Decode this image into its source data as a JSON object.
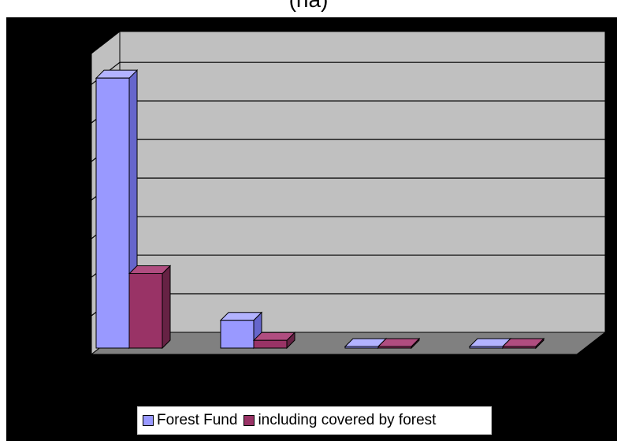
{
  "header": {
    "title_fragment": "(ha)"
  },
  "colors": {
    "background": "#000000",
    "wall": "#c0c0c0",
    "floor": "#808080",
    "gridline": "#000000",
    "series_1_front": "#9999ff",
    "series_1_side": "#6666cc",
    "series_1_top": "#b3b3ff",
    "series_2_front": "#993366",
    "series_2_side": "#662244",
    "series_2_top": "#b04d80"
  },
  "chart_data": {
    "type": "bar",
    "style": "3d-clustered-column",
    "title": "(ha)",
    "xlabel": "",
    "ylabel": "",
    "categories": [
      "",
      "",
      "",
      ""
    ],
    "ylim": [
      0,
      7
    ],
    "gridlines": 7,
    "grid": true,
    "legend_position": "bottom",
    "series": [
      {
        "name": "Forest Fund",
        "values": [
          7.0,
          0.72,
          0.03,
          0.02
        ]
      },
      {
        "name": "including covered by forest",
        "values": [
          1.93,
          0.2,
          0.02,
          0.02
        ]
      }
    ]
  },
  "legend": {
    "items": [
      {
        "label": "Forest Fund"
      },
      {
        "label": "including covered by forest"
      }
    ]
  }
}
